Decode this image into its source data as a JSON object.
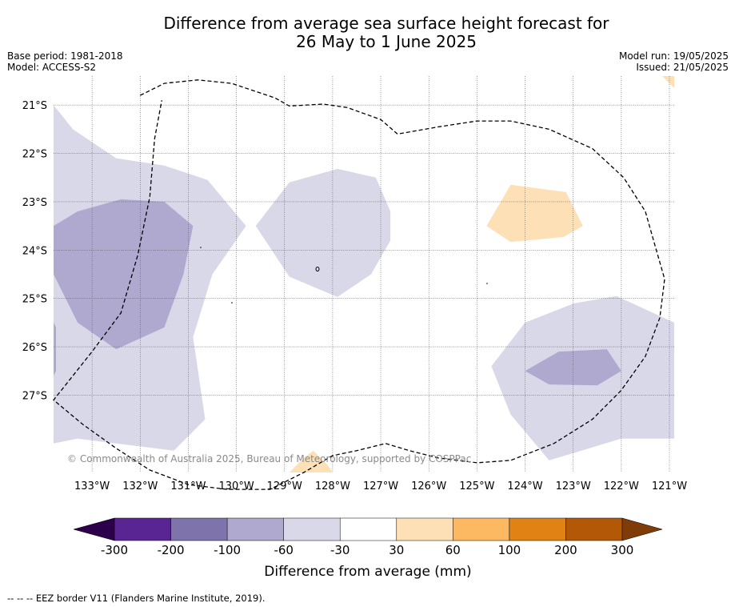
{
  "title_line1": "Difference from average sea surface height forecast for",
  "title_line2": "26 May to 1 June 2025",
  "base_period": "Base period: 1981-2018",
  "model": "Model: ACCESS-S2",
  "model_run": "Model run: 19/05/2025",
  "issued": "Issued: 21/05/2025",
  "copyright": "© Commonwealth of Australia 2025, Bureau of Meteorology, supported by COSPPac",
  "footer_note": "--  --  -- EEZ border V11 (Flanders Marine Institute, 2019).",
  "map": {
    "lon_range": [
      -133.8,
      -120.9
    ],
    "lat_range": [
      -28.6,
      -20.4
    ],
    "lon_ticks": [
      -133,
      -132,
      -131,
      -130,
      -129,
      -128,
      -127,
      -126,
      -125,
      -124,
      -123,
      -122,
      -121
    ],
    "lon_tick_labels": [
      "133°W",
      "132°W",
      "131°W",
      "130°W",
      "129°W",
      "128°W",
      "127°W",
      "126°W",
      "125°W",
      "124°W",
      "123°W",
      "122°W",
      "121°W"
    ],
    "lat_ticks": [
      -21,
      -22,
      -23,
      -24,
      -25,
      -26,
      -27
    ],
    "lat_tick_labels": [
      "21°S",
      "22°S",
      "23°S",
      "24°S",
      "25°S",
      "26°S",
      "27°S"
    ],
    "gridlines": true,
    "fill_colors": {
      "-60_-30": "#d8d8e9",
      "-100_-60": "#afa8cf",
      "30_60": "#fee0b6"
    },
    "regions": [
      {
        "name": "west-low",
        "level": "-60_-30",
        "lonlat": [
          [
            -133.8,
            -21.0
          ],
          [
            -133.4,
            -21.5
          ],
          [
            -132.5,
            -22.1
          ],
          [
            -131.5,
            -22.25
          ],
          [
            -130.6,
            -22.55
          ],
          [
            -129.8,
            -23.5
          ],
          [
            -130.5,
            -24.5
          ],
          [
            -130.9,
            -25.8
          ],
          [
            -130.65,
            -27.5
          ],
          [
            -131.3,
            -28.15
          ],
          [
            -133.3,
            -27.9
          ],
          [
            -133.8,
            -28.0
          ]
        ]
      },
      {
        "name": "west-core",
        "level": "-100_-60",
        "lonlat": [
          [
            -133.8,
            -23.5
          ],
          [
            -133.3,
            -23.2
          ],
          [
            -132.4,
            -22.95
          ],
          [
            -131.5,
            -23.0
          ],
          [
            -130.9,
            -23.5
          ],
          [
            -131.1,
            -24.5
          ],
          [
            -131.5,
            -25.6
          ],
          [
            -132.5,
            -26.05
          ],
          [
            -133.3,
            -25.5
          ],
          [
            -133.8,
            -24.5
          ]
        ]
      },
      {
        "name": "west-edge",
        "level": "-100_-60",
        "lonlat": [
          [
            -133.8,
            -25.5
          ],
          [
            -133.75,
            -25.6
          ],
          [
            -133.75,
            -26.5
          ],
          [
            -133.8,
            -26.6
          ]
        ]
      },
      {
        "name": "central-low",
        "level": "-60_-30",
        "lonlat": [
          [
            -129.6,
            -23.5
          ],
          [
            -128.9,
            -22.6
          ],
          [
            -127.9,
            -22.32
          ],
          [
            -127.1,
            -22.5
          ],
          [
            -126.8,
            -23.2
          ],
          [
            -126.8,
            -23.8
          ],
          [
            -127.2,
            -24.5
          ],
          [
            -127.9,
            -24.97
          ],
          [
            -128.9,
            -24.55
          ],
          [
            -129.6,
            -23.5
          ]
        ]
      },
      {
        "name": "east-low",
        "level": "-60_-30",
        "lonlat": [
          [
            -120.9,
            -25.5
          ],
          [
            -122.1,
            -24.95
          ],
          [
            -122.98,
            -25.1
          ],
          [
            -124.0,
            -25.5
          ],
          [
            -124.7,
            -26.4
          ],
          [
            -124.3,
            -27.4
          ],
          [
            -123.5,
            -28.35
          ],
          [
            -122.0,
            -27.9
          ],
          [
            -120.9,
            -27.9
          ]
        ]
      },
      {
        "name": "east-core",
        "level": "-100_-60",
        "lonlat": [
          [
            -124.0,
            -26.5
          ],
          [
            -123.3,
            -26.1
          ],
          [
            -122.3,
            -26.05
          ],
          [
            -122.0,
            -26.5
          ],
          [
            -122.5,
            -26.8
          ],
          [
            -123.5,
            -26.78
          ]
        ]
      },
      {
        "name": "east-high",
        "level": "30_60",
        "lonlat": [
          [
            -124.8,
            -23.5
          ],
          [
            -124.3,
            -22.65
          ],
          [
            -123.15,
            -22.8
          ],
          [
            -122.8,
            -23.5
          ],
          [
            -123.2,
            -23.73
          ],
          [
            -124.3,
            -23.83
          ]
        ]
      },
      {
        "name": "south-high",
        "level": "30_60",
        "lonlat": [
          [
            -128.9,
            -28.6
          ],
          [
            -128.6,
            -28.3
          ],
          [
            -128.4,
            -28.15
          ],
          [
            -128.1,
            -28.45
          ],
          [
            -128.0,
            -28.6
          ]
        ]
      },
      {
        "name": "northeast-high",
        "level": "30_60",
        "lonlat": [
          [
            -121.15,
            -20.4
          ],
          [
            -120.9,
            -20.65
          ],
          [
            -120.9,
            -20.4
          ]
        ]
      }
    ],
    "eez_border": [
      [
        -132.0,
        -20.8
      ],
      [
        -131.5,
        -20.55
      ],
      [
        -130.8,
        -20.48
      ],
      [
        -130.1,
        -20.55
      ],
      [
        -129.2,
        -20.85
      ],
      [
        -128.9,
        -21.02
      ],
      [
        -128.2,
        -20.98
      ],
      [
        -127.7,
        -21.05
      ],
      [
        -127.0,
        -21.3
      ],
      [
        -126.65,
        -21.6
      ],
      [
        -125.8,
        -21.45
      ],
      [
        -125.0,
        -21.33
      ],
      [
        -124.3,
        -21.33
      ],
      [
        -123.5,
        -21.5
      ],
      [
        -122.6,
        -21.9
      ],
      [
        -121.95,
        -22.5
      ],
      [
        -121.5,
        -23.2
      ],
      [
        -121.3,
        -23.9
      ],
      [
        -121.1,
        -24.6
      ],
      [
        -121.2,
        -25.4
      ],
      [
        -121.5,
        -26.2
      ],
      [
        -122.0,
        -26.9
      ],
      [
        -122.6,
        -27.5
      ],
      [
        -123.4,
        -28.0
      ],
      [
        -124.3,
        -28.35
      ],
      [
        -125.0,
        -28.4
      ],
      [
        -125.8,
        -28.3
      ],
      [
        -126.4,
        -28.15
      ],
      [
        -126.9,
        -28.0
      ],
      [
        -127.5,
        -28.15
      ],
      [
        -128.0,
        -28.25
      ],
      [
        -128.6,
        -28.6
      ],
      [
        -129.3,
        -28.95
      ],
      [
        -130.2,
        -28.95
      ],
      [
        -131.0,
        -28.85
      ],
      [
        -131.8,
        -28.55
      ],
      [
        -132.5,
        -28.1
      ],
      [
        -133.2,
        -27.6
      ],
      [
        -133.8,
        -27.1
      ],
      [
        -133.4,
        -26.6
      ],
      [
        -133.0,
        -26.1
      ],
      [
        -132.4,
        -25.3
      ],
      [
        -132.05,
        -24.1
      ],
      [
        -131.8,
        -22.9
      ],
      [
        -131.7,
        -21.7
      ],
      [
        -131.55,
        -20.9
      ]
    ]
  },
  "colorbar": {
    "label": "Difference from average (mm)",
    "tick_labels": [
      "-300",
      "-200",
      "-100",
      "-60",
      "-30",
      "30",
      "60",
      "100",
      "200",
      "300"
    ],
    "colors": [
      "#582592",
      "#7f73ab",
      "#afa8cf",
      "#d8d8e9",
      "#ffffff",
      "#fee0b6",
      "#fdb862",
      "#e08214",
      "#b35806"
    ],
    "under_color": "#2d004b",
    "over_color": "#7f3b08"
  }
}
